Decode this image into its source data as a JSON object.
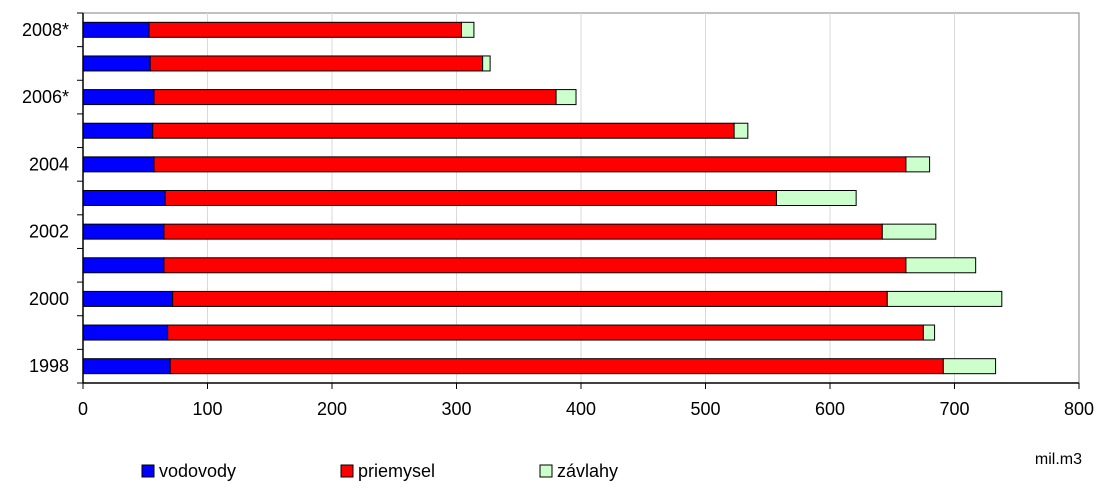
{
  "chart_data": {
    "type": "bar",
    "orientation": "horizontal",
    "stacked": true,
    "categories": [
      "1998",
      "",
      "2000",
      "",
      "2002",
      "",
      "2004",
      "",
      "2006*",
      "",
      "2008*"
    ],
    "series": [
      {
        "name": "vodovody",
        "color": "#0000ff",
        "values": [
          70,
          68,
          72,
          65,
          65,
          66,
          57,
          56,
          57,
          54,
          53
        ]
      },
      {
        "name": "priemysel",
        "color": "#ff0000",
        "values": [
          621,
          607,
          574,
          596,
          577,
          491,
          604,
          467,
          323,
          267,
          251
        ]
      },
      {
        "name": "závlahy",
        "color": "#ccffcc",
        "values": [
          42,
          9,
          92,
          56,
          43,
          64,
          19,
          11,
          16,
          6,
          10
        ]
      }
    ],
    "xlim": [
      0,
      800
    ],
    "x_ticks": [
      "0",
      "100",
      "200",
      "300",
      "400",
      "500",
      "600",
      "700",
      "800"
    ],
    "unit_label": "mil.m3",
    "grid": "vertical",
    "legend_position": "bottom"
  }
}
